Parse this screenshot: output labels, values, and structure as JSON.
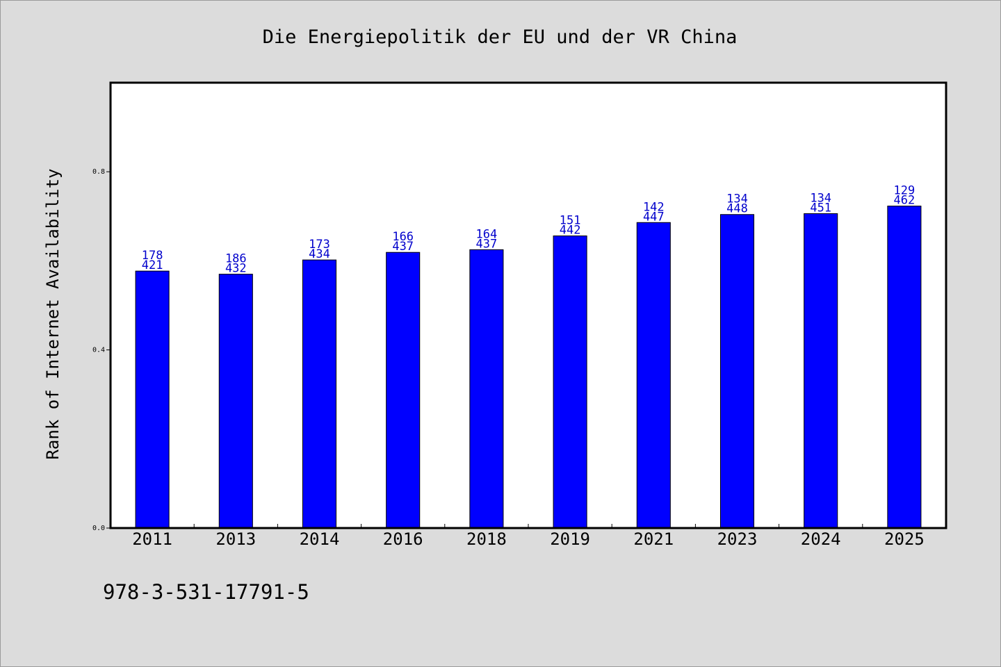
{
  "chart_data": {
    "type": "bar",
    "title": "Die Energiepolitik der EU und der VR China",
    "ylabel": "Rank of Internet Availability",
    "xlabel": "",
    "categories": [
      "2011",
      "2013",
      "2014",
      "2016",
      "2018",
      "2019",
      "2021",
      "2023",
      "2024",
      "2025"
    ],
    "values": [
      0.577,
      0.57,
      0.602,
      0.619,
      0.625,
      0.656,
      0.686,
      0.704,
      0.706,
      0.723
    ],
    "bar_labels": [
      [
        "178",
        "421"
      ],
      [
        "186",
        "432"
      ],
      [
        "173",
        "434"
      ],
      [
        "166",
        "437"
      ],
      [
        "164",
        "437"
      ],
      [
        "151",
        "442"
      ],
      [
        "142",
        "447"
      ],
      [
        "134",
        "448"
      ],
      [
        "134",
        "451"
      ],
      [
        "129",
        "462"
      ]
    ],
    "yticks": [
      "0.0",
      "0.4",
      "0.8"
    ],
    "ylim": [
      0,
      1.0
    ],
    "grid": false,
    "legend": "none",
    "colors": {
      "bar": "#0000ff",
      "bar_label": "#0000cc",
      "background": "#dcdcdc",
      "plot_background": "#ffffff"
    }
  },
  "footer_text": "978-3-531-17791-5"
}
